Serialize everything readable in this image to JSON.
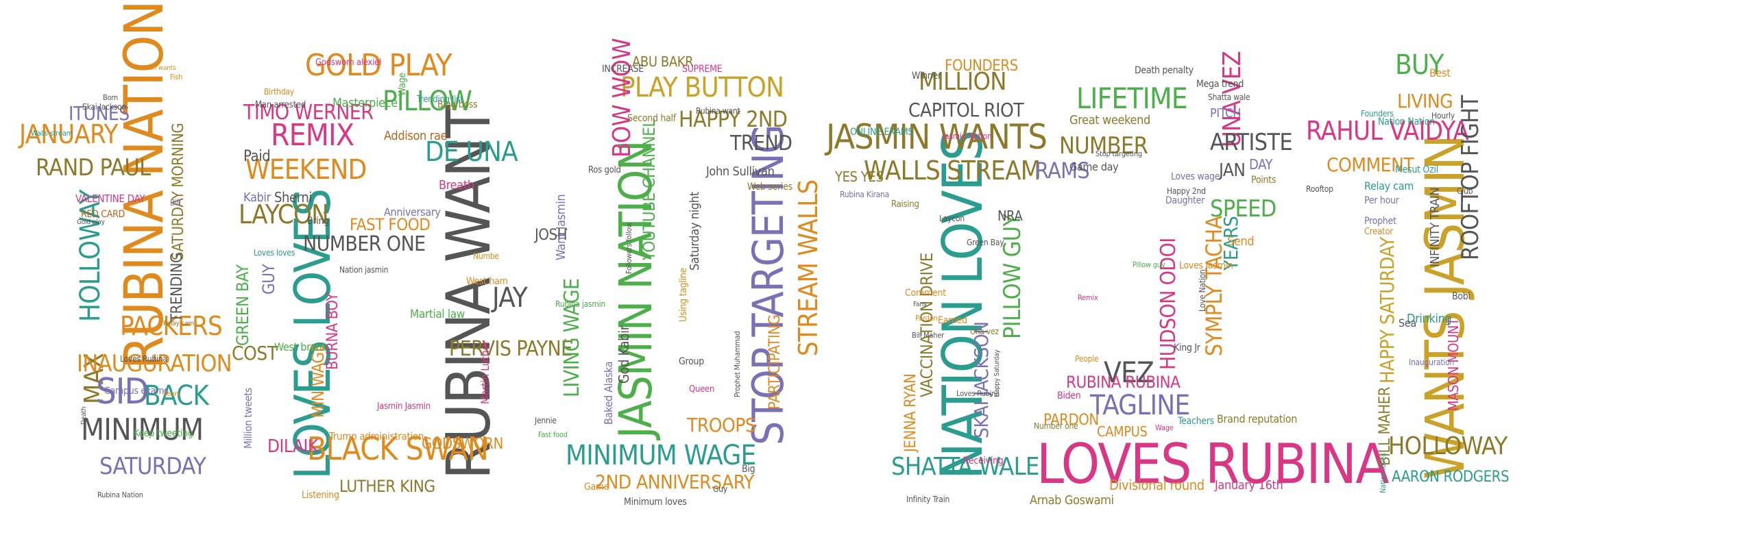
{
  "title": "",
  "palette": {
    "orange": "#E08A1E",
    "teal": "#2A9D8F",
    "green": "#4DAF4A",
    "purple": "#7B6FB5",
    "magenta": "#D93685",
    "gold": "#C9A227",
    "gray": "#555555",
    "olive": "#8C7A2A",
    "brown": "#B5651D"
  },
  "digits": [
    {
      "char": "1",
      "words": [
        {
          "text": "RUBINA NATION"
        },
        {
          "text": "HOLLOWAY"
        },
        {
          "text": "MAX"
        },
        {
          "text": "JANUARY"
        },
        {
          "text": "RAND PAUL"
        },
        {
          "text": "ITUNES"
        },
        {
          "text": "PACKERS"
        },
        {
          "text": "INAUGURATION"
        },
        {
          "text": "SID"
        },
        {
          "text": "BACK"
        },
        {
          "text": "MINIMUM"
        },
        {
          "text": "SATURDAY"
        },
        {
          "text": "SATURDAY MORNING"
        },
        {
          "text": "VALENTINE DAY"
        },
        {
          "text": "TRENDING"
        },
        {
          "text": "RED CARD"
        },
        {
          "text": "Keep tweeting"
        },
        {
          "text": "Campus exams"
        },
        {
          "text": "Loves Rubina"
        },
        {
          "text": "Nation wants"
        },
        {
          "text": "Skai Jackson"
        },
        {
          "text": "Walls stream"
        },
        {
          "text": "Born"
        },
        {
          "text": "Fish"
        },
        {
          "text": "Bill"
        },
        {
          "text": "Rubina Nation"
        },
        {
          "text": "Death"
        },
        {
          "text": "Years"
        },
        {
          "text": "Gold play"
        },
        {
          "text": "Relay cam"
        }
      ]
    },
    {
      "char": "6",
      "words": [
        {
          "text": "RUBINA WANT"
        },
        {
          "text": "LOVES LOVES"
        },
        {
          "text": "GOLD PLAY"
        },
        {
          "text": "REMIX"
        },
        {
          "text": "PILLOW"
        },
        {
          "text": "DE UNA"
        },
        {
          "text": "WEEKEND"
        },
        {
          "text": "LAYCON"
        },
        {
          "text": "BLACK SWAN"
        },
        {
          "text": "JAY"
        },
        {
          "text": "PERVIS PAYNE"
        },
        {
          "text": "TIMO WERNER"
        },
        {
          "text": "NUMBER ONE"
        },
        {
          "text": "FAST FOOD"
        },
        {
          "text": "GREEN BAY"
        },
        {
          "text": "GUY"
        },
        {
          "text": "COST"
        },
        {
          "text": "DILAIK"
        },
        {
          "text": "MIN WAGE"
        },
        {
          "text": "BURNA BOY"
        },
        {
          "text": "GODSWORN"
        },
        {
          "text": "LUTHER KING"
        },
        {
          "text": "Martial law"
        },
        {
          "text": "Trump administration"
        },
        {
          "text": "Million tweets"
        },
        {
          "text": "Masterpiece"
        },
        {
          "text": "Godsworn alexiel"
        },
        {
          "text": "Man arrested"
        },
        {
          "text": "Addison rae"
        },
        {
          "text": "Bigg boss"
        },
        {
          "text": "Trending list"
        },
        {
          "text": "Breath"
        },
        {
          "text": "West ham"
        },
        {
          "text": "Martin Luther"
        },
        {
          "text": "Jasmin Jasmin"
        },
        {
          "text": "Wage"
        },
        {
          "text": "Paid"
        },
        {
          "text": "Kabir"
        },
        {
          "text": "Sherni"
        },
        {
          "text": "Anniversary"
        },
        {
          "text": "Listening"
        },
        {
          "text": "West brom"
        },
        {
          "text": "Birthday"
        },
        {
          "text": "Loves loves"
        },
        {
          "text": "Nation jasmin"
        },
        {
          "text": "Bring"
        },
        {
          "text": "Numbe"
        }
      ]
    },
    {
      "char": "0",
      "words": [
        {
          "text": "JASMIN NATION"
        },
        {
          "text": "STOP TARGETING"
        },
        {
          "text": "STREAM WALLS"
        },
        {
          "text": "MINIMUM WAGE"
        },
        {
          "text": "PLAY BUTTON"
        },
        {
          "text": "BOW WOW"
        },
        {
          "text": "YOUTUBE CHANNEL"
        },
        {
          "text": "HAPPY 2ND"
        },
        {
          "text": "TREND"
        },
        {
          "text": "LIVING WAGE"
        },
        {
          "text": "PARTICIPATING"
        },
        {
          "text": "2ND ANNIVERSARY"
        },
        {
          "text": "TROOPS"
        },
        {
          "text": "ABU BAKR"
        },
        {
          "text": "SUPREME"
        },
        {
          "text": "INCREASE"
        },
        {
          "text": "JOSH"
        },
        {
          "text": "Want Jasmin"
        },
        {
          "text": "God Kabir"
        },
        {
          "text": "Baked Alaska"
        },
        {
          "text": "Saturday night"
        },
        {
          "text": "John Sullivan"
        },
        {
          "text": "Web series"
        },
        {
          "text": "Second half"
        },
        {
          "text": "Rubina want"
        },
        {
          "text": "Rubina jasmin"
        },
        {
          "text": "Jennie"
        },
        {
          "text": "Minimum loves"
        },
        {
          "text": "Game"
        },
        {
          "text": "Big"
        },
        {
          "text": "Group"
        },
        {
          "text": "Prophet Muhammad"
        },
        {
          "text": "Using tagline"
        },
        {
          "text": "Queen"
        },
        {
          "text": "Fast food"
        },
        {
          "text": "Followers follow"
        },
        {
          "text": "Guy"
        },
        {
          "text": "Ros gold"
        }
      ]
    },
    {
      "char": "1",
      "words": [
        {
          "text": "NATION LOVES"
        },
        {
          "text": "JASMIN WANTS"
        },
        {
          "text": "WALLS STREAM"
        },
        {
          "text": "MILLION"
        },
        {
          "text": "CAPITOL RIOT"
        },
        {
          "text": "FOUNDERS"
        },
        {
          "text": "YES YES"
        },
        {
          "text": "SHATTA WALE"
        },
        {
          "text": "PILLOW GUY"
        },
        {
          "text": "SKAI JACKSON"
        },
        {
          "text": "VACCINATION DRIVE"
        },
        {
          "text": "JENNA RYAN"
        },
        {
          "text": "ONLINE EXAMS"
        },
        {
          "text": "Winner"
        },
        {
          "text": "Rubina Kirana"
        },
        {
          "text": "Raising"
        },
        {
          "text": "Comment"
        },
        {
          "text": "Fans"
        },
        {
          "text": "Laycon"
        },
        {
          "text": "Green Bay"
        },
        {
          "text": "Una vez"
        },
        {
          "text": "Infinity Train"
        },
        {
          "text": "Bill Maher"
        },
        {
          "text": "Jasmin Nation"
        },
        {
          "text": "NRA"
        },
        {
          "text": "Receiving"
        },
        {
          "text": "Happy Saturday"
        },
        {
          "text": "Loves Rubina"
        },
        {
          "text": "Earned"
        },
        {
          "text": "Pardon"
        }
      ]
    },
    {
      "char": "2",
      "words": [
        {
          "text": "LOVES RUBINA"
        },
        {
          "text": "LIFETIME"
        },
        {
          "text": "UNA VEZ"
        },
        {
          "text": "ARTISTE"
        },
        {
          "text": "NUMBER"
        },
        {
          "text": "RAMS"
        },
        {
          "text": "SPEED"
        },
        {
          "text": "SYMPLY TACHA"
        },
        {
          "text": "HUDSON ODOI"
        },
        {
          "text": "VEZ"
        },
        {
          "text": "TAGLINE"
        },
        {
          "text": "RUBINA RUBINA"
        },
        {
          "text": "PARDON"
        },
        {
          "text": "CAMPUS"
        },
        {
          "text": "YEARS"
        },
        {
          "text": "JAN"
        },
        {
          "text": "DAY"
        },
        {
          "text": "PITCH"
        },
        {
          "text": "Death penalty"
        },
        {
          "text": "Great weekend"
        },
        {
          "text": "Game day"
        },
        {
          "text": "Mega trend"
        },
        {
          "text": "Shatta wale"
        },
        {
          "text": "Points"
        },
        {
          "text": "Happy 2nd"
        },
        {
          "text": "Daughter"
        },
        {
          "text": "Loves wage"
        },
        {
          "text": "Loves Jasmin"
        },
        {
          "text": "Love Nation"
        },
        {
          "text": "Send"
        },
        {
          "text": "Arnab Goswami"
        },
        {
          "text": "Divisional round"
        },
        {
          "text": "January 16th"
        },
        {
          "text": "Brand reputation"
        },
        {
          "text": "Teachers"
        },
        {
          "text": "King Jr"
        },
        {
          "text": "Biden"
        },
        {
          "text": "Number one"
        },
        {
          "text": "Stop targeting"
        },
        {
          "text": "Pillow guy"
        },
        {
          "text": "People"
        },
        {
          "text": "Wage"
        },
        {
          "text": "Remix"
        }
      ]
    },
    {
      "char": "1",
      "words": [
        {
          "text": "WANTS JASMIN"
        },
        {
          "text": "RAHUL VAIDYA"
        },
        {
          "text": "ROOFTOP FIGHT"
        },
        {
          "text": "HAPPY SATURDAY"
        },
        {
          "text": "HOLLOWAY"
        },
        {
          "text": "AARON RODGERS"
        },
        {
          "text": "BILL MAHER"
        },
        {
          "text": "MASON MOUNT"
        },
        {
          "text": "INFINITY TRAIN"
        },
        {
          "text": "COMMENT"
        },
        {
          "text": "BUY"
        },
        {
          "text": "LIVING"
        },
        {
          "text": "Mesut Ozil"
        },
        {
          "text": "Relay cam"
        },
        {
          "text": "Per hour"
        },
        {
          "text": "Prophet"
        },
        {
          "text": "Creator"
        },
        {
          "text": "Drinking"
        },
        {
          "text": "Inauguration"
        },
        {
          "text": "Founders"
        },
        {
          "text": "Nation Nation"
        },
        {
          "text": "Rooftop"
        },
        {
          "text": "Nation loves"
        },
        {
          "text": "Club"
        },
        {
          "text": "Best"
        },
        {
          "text": "Bobi"
        },
        {
          "text": "Sea"
        },
        {
          "text": "Hourly"
        }
      ]
    }
  ]
}
